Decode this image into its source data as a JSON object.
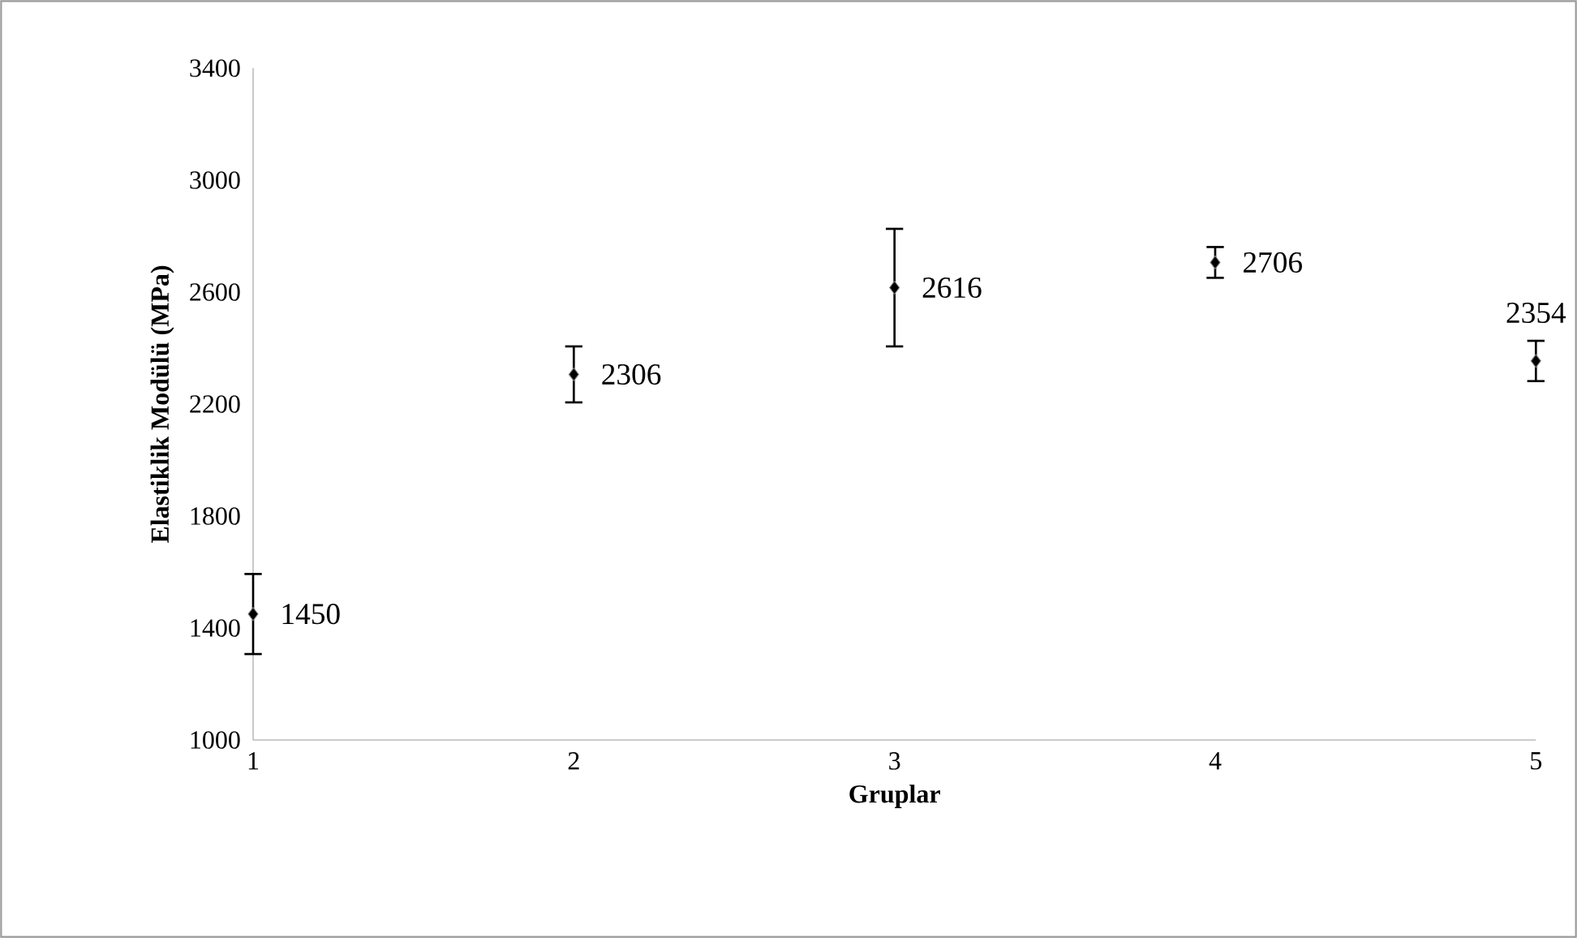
{
  "chart_data": {
    "type": "scatter",
    "xlabel": "Gruplar",
    "ylabel": "Elastiklik Modülü (MPa)",
    "x": [
      1,
      2,
      3,
      4,
      5
    ],
    "values": [
      1450,
      2306,
      2616,
      2706,
      2354
    ],
    "errors": [
      143,
      100,
      210,
      55,
      72
    ],
    "color": "#000000",
    "marker": "diamond",
    "data_labels": true,
    "grid": false,
    "xlim": [
      1,
      5
    ],
    "xticks": [
      1,
      2,
      3,
      4,
      5
    ],
    "ylim": [
      1000,
      3400
    ],
    "yticks": [
      1000,
      1400,
      1800,
      2200,
      2600,
      3000,
      3400
    ]
  }
}
